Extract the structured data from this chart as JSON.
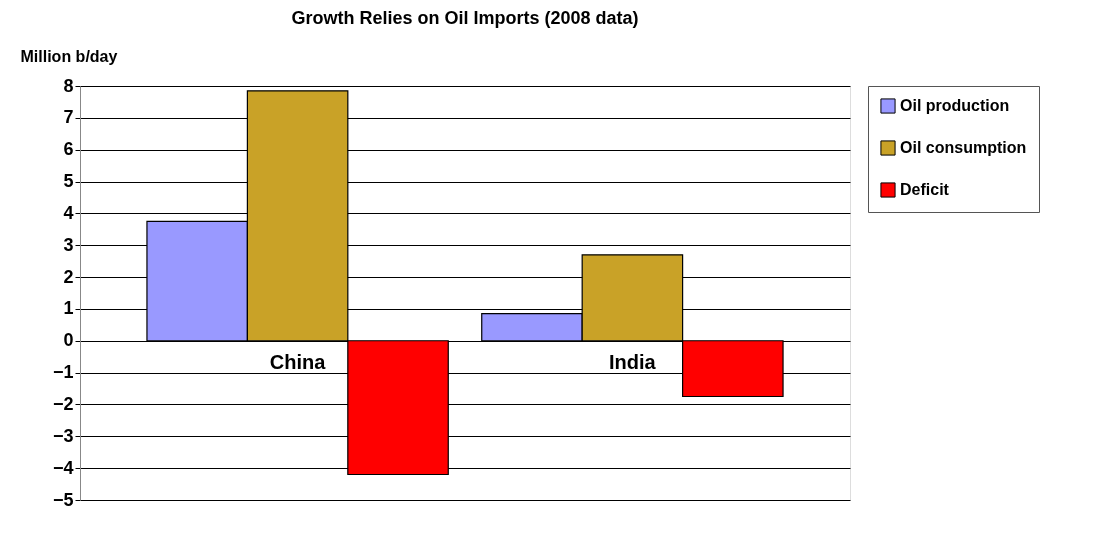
{
  "chart_data": {
    "type": "bar",
    "title": "Growth Relies on Oil Imports (2008 data)",
    "ylabel": "Million b/day",
    "categories": [
      "China",
      "India"
    ],
    "series": [
      {
        "name": "Oil production",
        "color": "#9999ff",
        "values": [
          3.75,
          0.85
        ]
      },
      {
        "name": "Oil consumption",
        "color": "#c9a227",
        "values": [
          7.85,
          2.7
        ]
      },
      {
        "name": "Deficit",
        "color": "#ff0000",
        "values": [
          -4.2,
          -1.75
        ]
      }
    ],
    "ylim": [
      -5,
      8
    ],
    "yticks": [
      -5,
      -4,
      -3,
      -2,
      -1,
      0,
      1,
      2,
      3,
      4,
      5,
      6,
      7,
      8
    ],
    "grid": "y",
    "legend": "right"
  }
}
